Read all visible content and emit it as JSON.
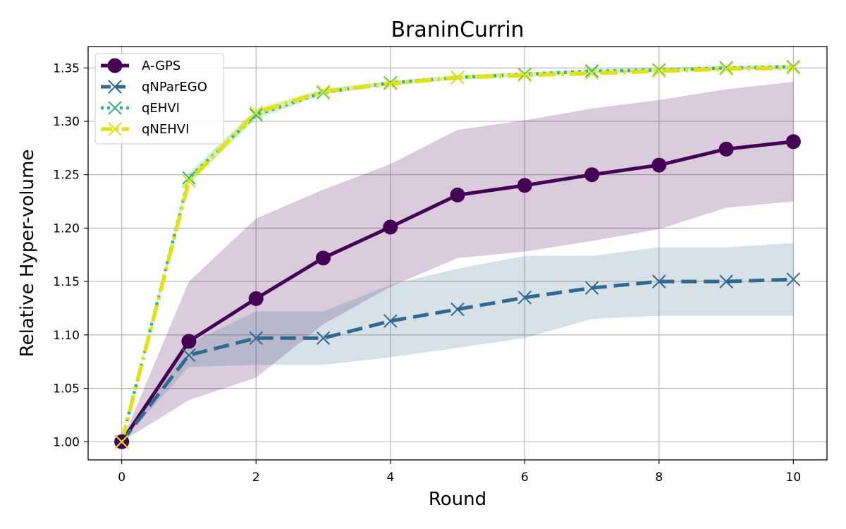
{
  "chart_data": {
    "type": "line",
    "title": "BraninCurrin",
    "xlabel": "Round",
    "ylabel": "Relative Hyper-volume",
    "x": [
      0,
      1,
      2,
      3,
      4,
      5,
      6,
      7,
      8,
      9,
      10
    ],
    "xlim": [
      -0.5,
      10.5
    ],
    "ylim": [
      0.983,
      1.37
    ],
    "xticks": [
      0,
      2,
      4,
      6,
      8,
      10
    ],
    "yticks": [
      1.0,
      1.05,
      1.1,
      1.15,
      1.2,
      1.25,
      1.3,
      1.35
    ],
    "xtick_labels": [
      "0",
      "2",
      "4",
      "6",
      "8",
      "10"
    ],
    "ytick_labels": [
      "1.00",
      "1.05",
      "1.10",
      "1.15",
      "1.20",
      "1.25",
      "1.30",
      "1.35"
    ],
    "grid": true,
    "legend_position": "top-left",
    "series": [
      {
        "name": "A-GPS",
        "color": "#440154",
        "line_style": "solid",
        "marker": "circle",
        "values": [
          1.0,
          1.094,
          1.134,
          1.172,
          1.201,
          1.231,
          1.24,
          1.25,
          1.259,
          1.274,
          1.281
        ],
        "band_lower": [
          1.0,
          1.039,
          1.06,
          1.11,
          1.145,
          1.172,
          1.178,
          1.188,
          1.199,
          1.219,
          1.225
        ],
        "band_upper": [
          1.0,
          1.15,
          1.209,
          1.236,
          1.26,
          1.292,
          1.301,
          1.312,
          1.32,
          1.33,
          1.337
        ]
      },
      {
        "name": "qNParEGO",
        "color": "#31688e",
        "line_style": "dashed",
        "marker": "x",
        "values": [
          1.0,
          1.081,
          1.097,
          1.097,
          1.113,
          1.124,
          1.135,
          1.144,
          1.15,
          1.15,
          1.152
        ],
        "band_lower": [
          1.0,
          1.07,
          1.072,
          1.072,
          1.079,
          1.088,
          1.097,
          1.115,
          1.118,
          1.118,
          1.118
        ],
        "band_upper": [
          1.0,
          1.092,
          1.122,
          1.122,
          1.147,
          1.162,
          1.174,
          1.174,
          1.182,
          1.182,
          1.186
        ]
      },
      {
        "name": "qEHVI",
        "color": "#35b779",
        "line_style": "dotted",
        "marker": "x",
        "values": [
          1.0,
          1.247,
          1.306,
          1.327,
          1.336,
          1.341,
          1.344,
          1.347,
          1.348,
          1.35,
          1.351
        ],
        "band_lower": [
          1.0,
          1.242,
          1.302,
          1.325,
          1.334,
          1.339,
          1.342,
          1.345,
          1.346,
          1.348,
          1.349
        ],
        "band_upper": [
          1.0,
          1.252,
          1.311,
          1.33,
          1.338,
          1.343,
          1.346,
          1.349,
          1.35,
          1.352,
          1.353
        ]
      },
      {
        "name": "qNEHVI",
        "color": "#dde318",
        "line_style": "dashdot",
        "marker": "x",
        "values": [
          1.0,
          1.244,
          1.308,
          1.328,
          1.335,
          1.341,
          1.343,
          1.345,
          1.347,
          1.349,
          1.35
        ],
        "band_lower": [
          1.0,
          1.239,
          1.304,
          1.326,
          1.333,
          1.339,
          1.341,
          1.343,
          1.345,
          1.347,
          1.348
        ],
        "band_upper": [
          1.0,
          1.249,
          1.313,
          1.331,
          1.338,
          1.344,
          1.346,
          1.348,
          1.35,
          1.352,
          1.353
        ]
      }
    ]
  }
}
